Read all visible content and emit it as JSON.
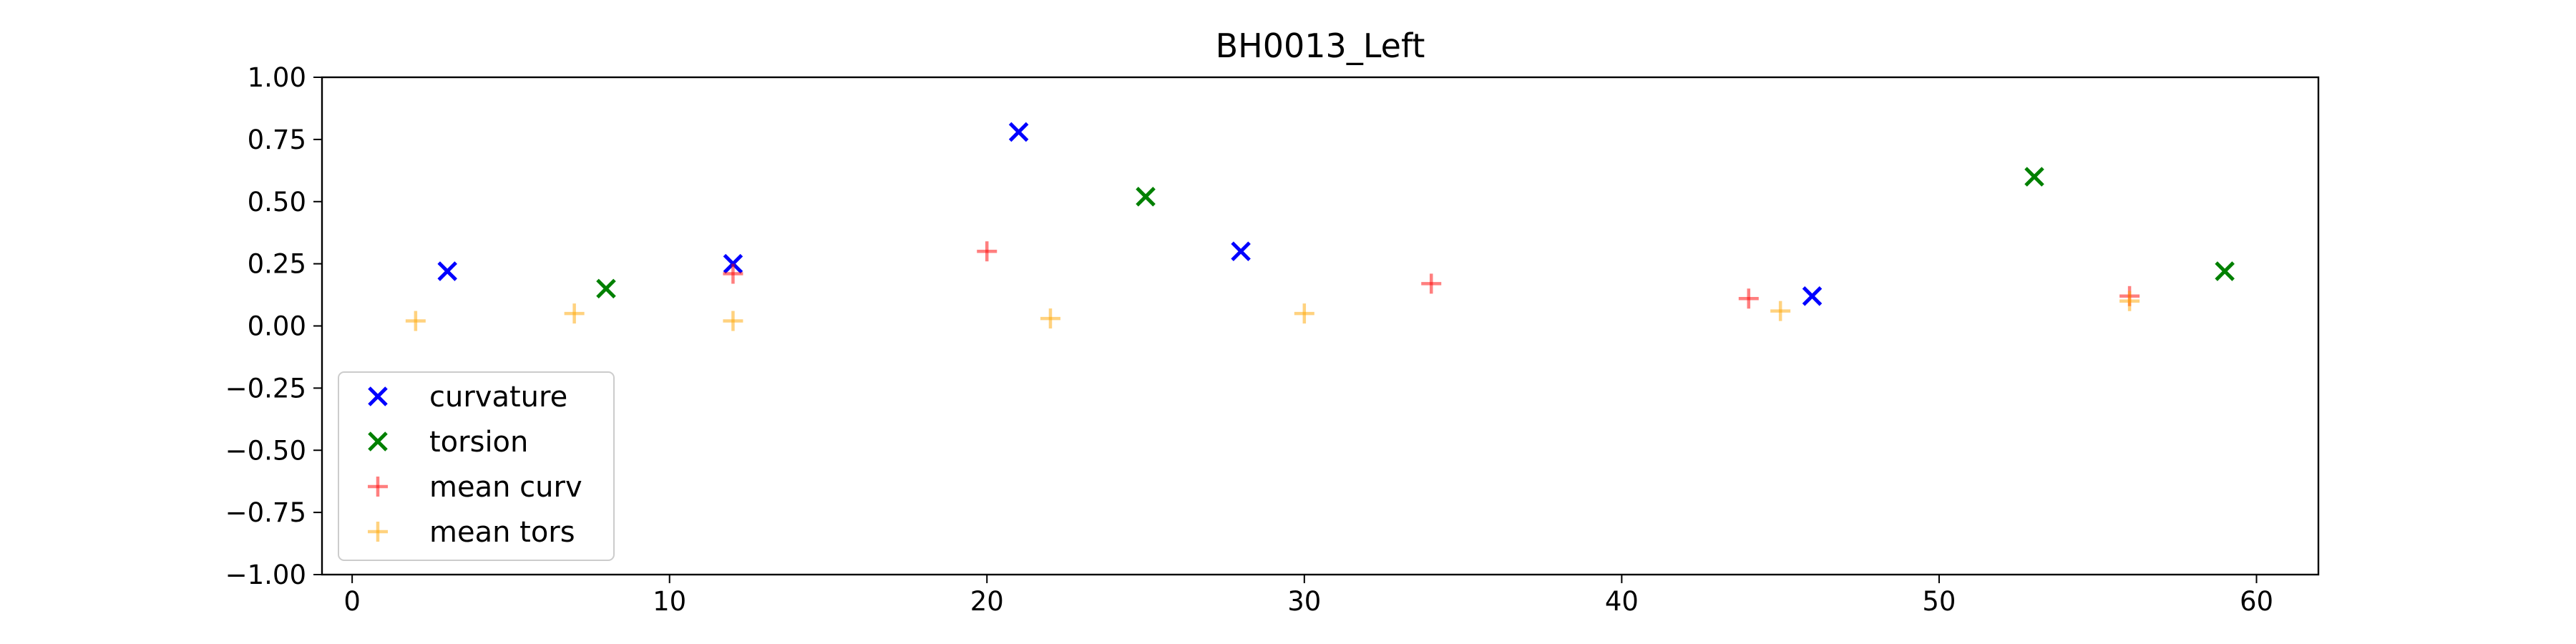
{
  "chart_data": {
    "type": "scatter",
    "title": "BH0013_Left",
    "xlabel": "",
    "ylabel": "",
    "xlim": [
      -0.95,
      61.95
    ],
    "ylim": [
      -1.0,
      1.0
    ],
    "xticks": [
      0,
      10,
      20,
      30,
      40,
      50,
      60
    ],
    "yticks": [
      -1.0,
      -0.75,
      -0.5,
      -0.25,
      0.0,
      0.25,
      0.5,
      0.75,
      1.0
    ],
    "xtick_labels": [
      "0",
      "10",
      "20",
      "30",
      "40",
      "50",
      "60"
    ],
    "ytick_labels": [
      "−1.00",
      "−0.75",
      "−0.50",
      "−0.25",
      "0.00",
      "0.25",
      "0.50",
      "0.75",
      "1.00"
    ],
    "grid": false,
    "legend_position": "lower-left",
    "series": [
      {
        "name": "curvature",
        "marker": "x",
        "color": "#0000ff",
        "alpha": 1.0,
        "x": [
          3,
          12,
          21,
          28,
          46
        ],
        "y": [
          0.22,
          0.25,
          0.78,
          0.3,
          0.12
        ]
      },
      {
        "name": "torsion",
        "marker": "x",
        "color": "#008000",
        "alpha": 1.0,
        "x": [
          8,
          25,
          53,
          59
        ],
        "y": [
          0.15,
          0.52,
          0.6,
          0.22
        ]
      },
      {
        "name": "mean curv",
        "marker": "+",
        "color": "#ff0000",
        "alpha": 0.5,
        "x": [
          12,
          20,
          34,
          44,
          56
        ],
        "y": [
          0.21,
          0.3,
          0.17,
          0.11,
          0.12
        ]
      },
      {
        "name": "mean tors",
        "marker": "+",
        "color": "#ffa500",
        "alpha": 0.5,
        "x": [
          2,
          7,
          12,
          22,
          30,
          45,
          56
        ],
        "y": [
          0.02,
          0.05,
          0.02,
          0.03,
          0.05,
          0.06,
          0.1
        ]
      }
    ]
  }
}
